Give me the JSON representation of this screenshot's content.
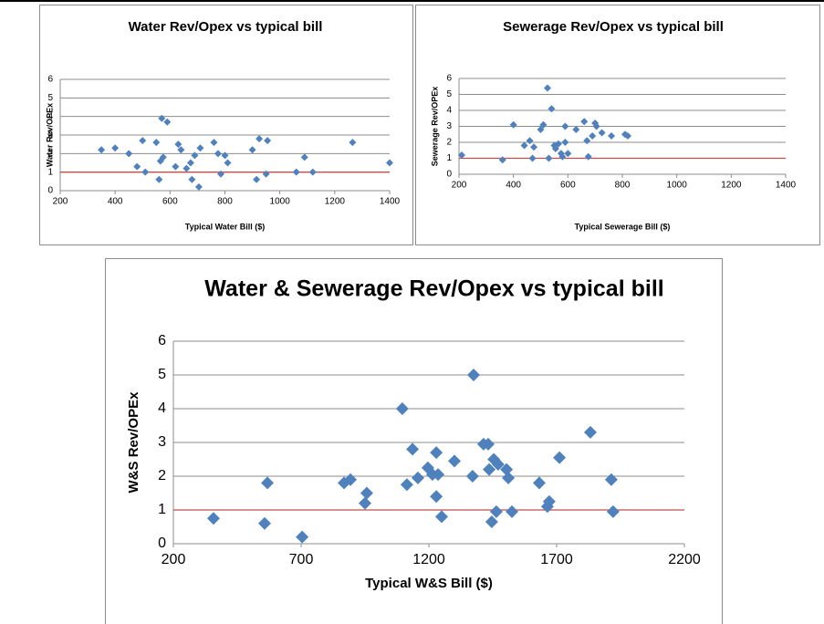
{
  "chart_data": [
    {
      "type": "scatter",
      "title": "Water Rev/Opex vs typical bill",
      "x_label": "Typical Water Bill ($)",
      "y_label": "Water Rev/OPEx",
      "xlim": [
        200,
        1400
      ],
      "xticks": [
        200,
        400,
        600,
        800,
        1000,
        1200,
        1400
      ],
      "ylim": [
        0,
        6
      ],
      "yticks": [
        0,
        1,
        2,
        3,
        4,
        5,
        6
      ],
      "grid": true,
      "reference_line": {
        "value": 1,
        "color": "#c0504d"
      },
      "series": [
        {
          "color": "#4f81bd",
          "x": [
            350,
            400,
            450,
            480,
            500,
            510,
            550,
            560,
            565,
            570,
            575,
            590,
            620,
            630,
            640,
            660,
            675,
            680,
            690,
            705,
            710,
            760,
            775,
            785,
            800,
            810,
            900,
            915,
            925,
            950,
            955,
            1060,
            1090,
            1120,
            1265,
            1400
          ],
          "values": [
            2.2,
            2.3,
            2.0,
            1.3,
            2.7,
            1.0,
            2.6,
            0.6,
            1.6,
            3.9,
            1.8,
            3.7,
            1.3,
            2.5,
            2.2,
            1.2,
            1.5,
            0.6,
            1.9,
            0.2,
            2.3,
            2.6,
            2.0,
            0.9,
            1.9,
            1.5,
            2.2,
            0.6,
            2.8,
            0.9,
            2.7,
            1.0,
            1.8,
            1.0,
            2.6,
            1.5
          ]
        }
      ]
    },
    {
      "type": "scatter",
      "title": "Sewerage Rev/Opex vs typical bill",
      "x_label": "Typical Sewerage Bill ($)",
      "y_label": "Sewerage Rev/OPEx",
      "xlim": [
        200,
        1400
      ],
      "xticks": [
        200,
        400,
        600,
        800,
        1000,
        1200,
        1400
      ],
      "ylim": [
        0,
        6
      ],
      "yticks": [
        0,
        1,
        2,
        3,
        4,
        5,
        6
      ],
      "grid": true,
      "reference_line": {
        "value": 1,
        "color": "#c0504d"
      },
      "series": [
        {
          "color": "#4f81bd",
          "x": [
            210,
            360,
            400,
            440,
            460,
            470,
            475,
            500,
            510,
            525,
            530,
            540,
            550,
            555,
            565,
            575,
            580,
            590,
            590,
            600,
            630,
            660,
            670,
            675,
            690,
            700,
            705,
            725,
            760,
            810,
            820
          ],
          "values": [
            1.2,
            0.9,
            3.1,
            1.8,
            2.1,
            1.0,
            1.7,
            2.8,
            3.1,
            5.4,
            1.0,
            4.1,
            1.8,
            1.6,
            1.9,
            1.3,
            1.1,
            3.0,
            2.0,
            1.3,
            2.8,
            3.3,
            2.1,
            1.1,
            2.4,
            3.2,
            3.0,
            2.6,
            2.4,
            2.5,
            2.4
          ]
        }
      ]
    },
    {
      "type": "scatter",
      "title": "Water & Sewerage Rev/Opex vs typical bill",
      "x_label": "Typical W&S Bill ($)",
      "y_label": "W&S Rev/OPEx",
      "xlim": [
        200,
        2200
      ],
      "xticks": [
        200,
        700,
        1200,
        1700,
        2200
      ],
      "ylim": [
        0,
        6
      ],
      "yticks": [
        0,
        1,
        2,
        3,
        4,
        5,
        6
      ],
      "grid": true,
      "reference_line": {
        "value": 1,
        "color": "#c0504d"
      },
      "series": [
        {
          "color": "#4f81bd",
          "x": [
            357,
            557,
            568,
            704,
            868,
            893,
            950,
            957,
            1096,
            1114,
            1136,
            1157,
            1196,
            1214,
            1229,
            1229,
            1236,
            1250,
            1300,
            1371,
            1375,
            1414,
            1432,
            1436,
            1446,
            1454,
            1464,
            1471,
            1504,
            1511,
            1525,
            1632,
            1664,
            1671,
            1711,
            1832,
            1914,
            1921
          ],
          "values": [
            0.75,
            0.6,
            1.8,
            0.2,
            1.8,
            1.9,
            1.2,
            1.5,
            4.0,
            1.75,
            2.8,
            1.95,
            2.25,
            2.05,
            2.7,
            1.4,
            2.05,
            0.8,
            2.45,
            2.0,
            5.0,
            2.95,
            2.95,
            2.2,
            0.65,
            2.5,
            0.95,
            2.35,
            2.2,
            1.95,
            0.95,
            1.8,
            1.1,
            1.25,
            2.55,
            3.3,
            1.9,
            0.95
          ]
        }
      ]
    }
  ]
}
